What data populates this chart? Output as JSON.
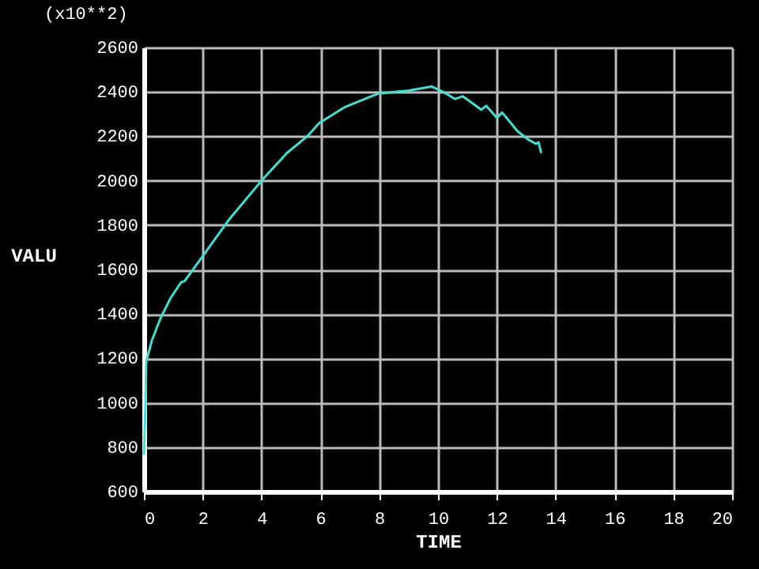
{
  "chart_data": {
    "type": "line",
    "xlabel": "TIME",
    "ylabel": "VALU",
    "annotations": [
      "(x10**2)"
    ],
    "x": [
      0,
      0.05,
      0.08,
      0.27,
      0.55,
      0.91,
      1.27,
      1.38,
      2.0,
      2.89,
      4.0,
      4.86,
      5.58,
      5.96,
      6.84,
      7.73,
      8.0,
      8.98,
      9.78,
      10.2,
      10.58,
      10.84,
      11.47,
      11.64,
      12.0,
      12.18,
      12.71,
      13.07,
      13.33,
      13.42,
      13.51
    ],
    "series": [
      {
        "color": "#40e0d0",
        "values": [
          767,
          970,
          1185,
          1280,
          1376,
          1472,
          1543,
          1547,
          1660,
          1824,
          2000,
          2124,
          2203,
          2259,
          2332,
          2380,
          2393,
          2405,
          2424,
          2398,
          2368,
          2380,
          2320,
          2337,
          2283,
          2307,
          2222,
          2185,
          2166,
          2173,
          2124
        ]
      }
    ],
    "xlim": [
      0,
      20
    ],
    "xticks": [
      0,
      2,
      4,
      6,
      8,
      10,
      12,
      14,
      16,
      18,
      20
    ],
    "ylim": [
      600,
      2600
    ],
    "yticks": [
      600,
      800,
      1000,
      1200,
      1400,
      1600,
      1800,
      2000,
      2200,
      2400,
      2600
    ],
    "grid": true,
    "marker": "none",
    "line_style": "solid"
  }
}
